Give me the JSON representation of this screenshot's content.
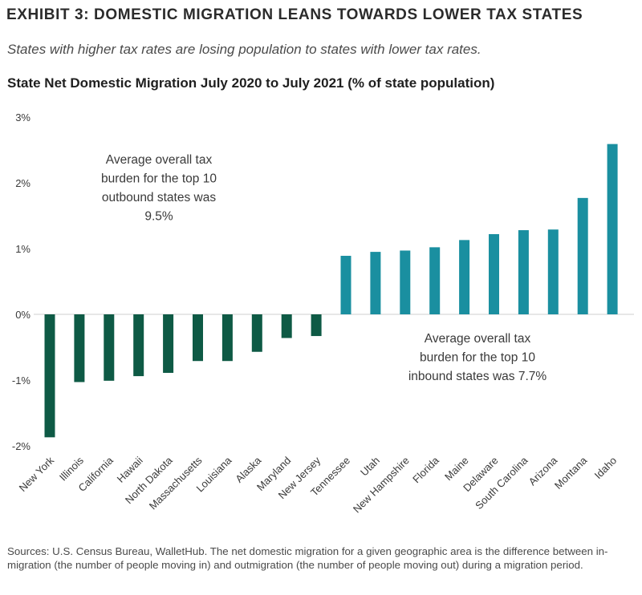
{
  "header": {
    "exhibit": "EXHIBIT 3: DOMESTIC MIGRATION LEANS TOWARDS LOWER TAX STATES",
    "subtitle": "States with higher tax rates are losing population to states with lower tax rates."
  },
  "footer": {
    "sources": "Sources: U.S. Census Bureau, WalletHub. The net domestic migration for a given geographic area is the difference between in-migration (the number of people moving in) and outmigration (the number of people moving out) during a migration period."
  },
  "colors": {
    "outbound": "#0e5a45",
    "inbound": "#1a8fa0"
  },
  "chart_data": {
    "type": "bar",
    "title": "State Net Domestic Migration July 2020 to July 2021 (% of state population)",
    "xlabel": "",
    "ylabel": "",
    "ylim": [
      -2,
      3
    ],
    "yticks": [
      {
        "value": 3,
        "label": "3%"
      },
      {
        "value": 2,
        "label": "2%"
      },
      {
        "value": 1,
        "label": "1%"
      },
      {
        "value": 0,
        "label": "0%"
      },
      {
        "value": -1,
        "label": "-1%"
      },
      {
        "value": -2,
        "label": "-2%"
      }
    ],
    "categories": [
      "New York",
      "Illinois",
      "California",
      "Hawaii",
      "North Dakota",
      "Massachusetts",
      "Louisiana",
      "Alaska",
      "Maryland",
      "New Jersey",
      "Tennessee",
      "Utah",
      "New Hampshire",
      "Florida",
      "Maine",
      "Delaware",
      "South Carolina",
      "Arizona",
      "Montana",
      "Idaho"
    ],
    "values": [
      -1.87,
      -1.03,
      -1.01,
      -0.94,
      -0.89,
      -0.71,
      -0.71,
      -0.57,
      -0.36,
      -0.33,
      0.89,
      0.95,
      0.97,
      1.02,
      1.13,
      1.22,
      1.28,
      1.29,
      1.77,
      2.59
    ],
    "annotations": [
      {
        "id": "outbound",
        "lines": [
          "Average overall tax",
          "burden for the top 10",
          "outbound states was",
          "9.5%"
        ]
      },
      {
        "id": "inbound",
        "lines": [
          "Average overall tax",
          "burden for the top 10",
          "inbound states was 7.7%"
        ]
      }
    ]
  }
}
